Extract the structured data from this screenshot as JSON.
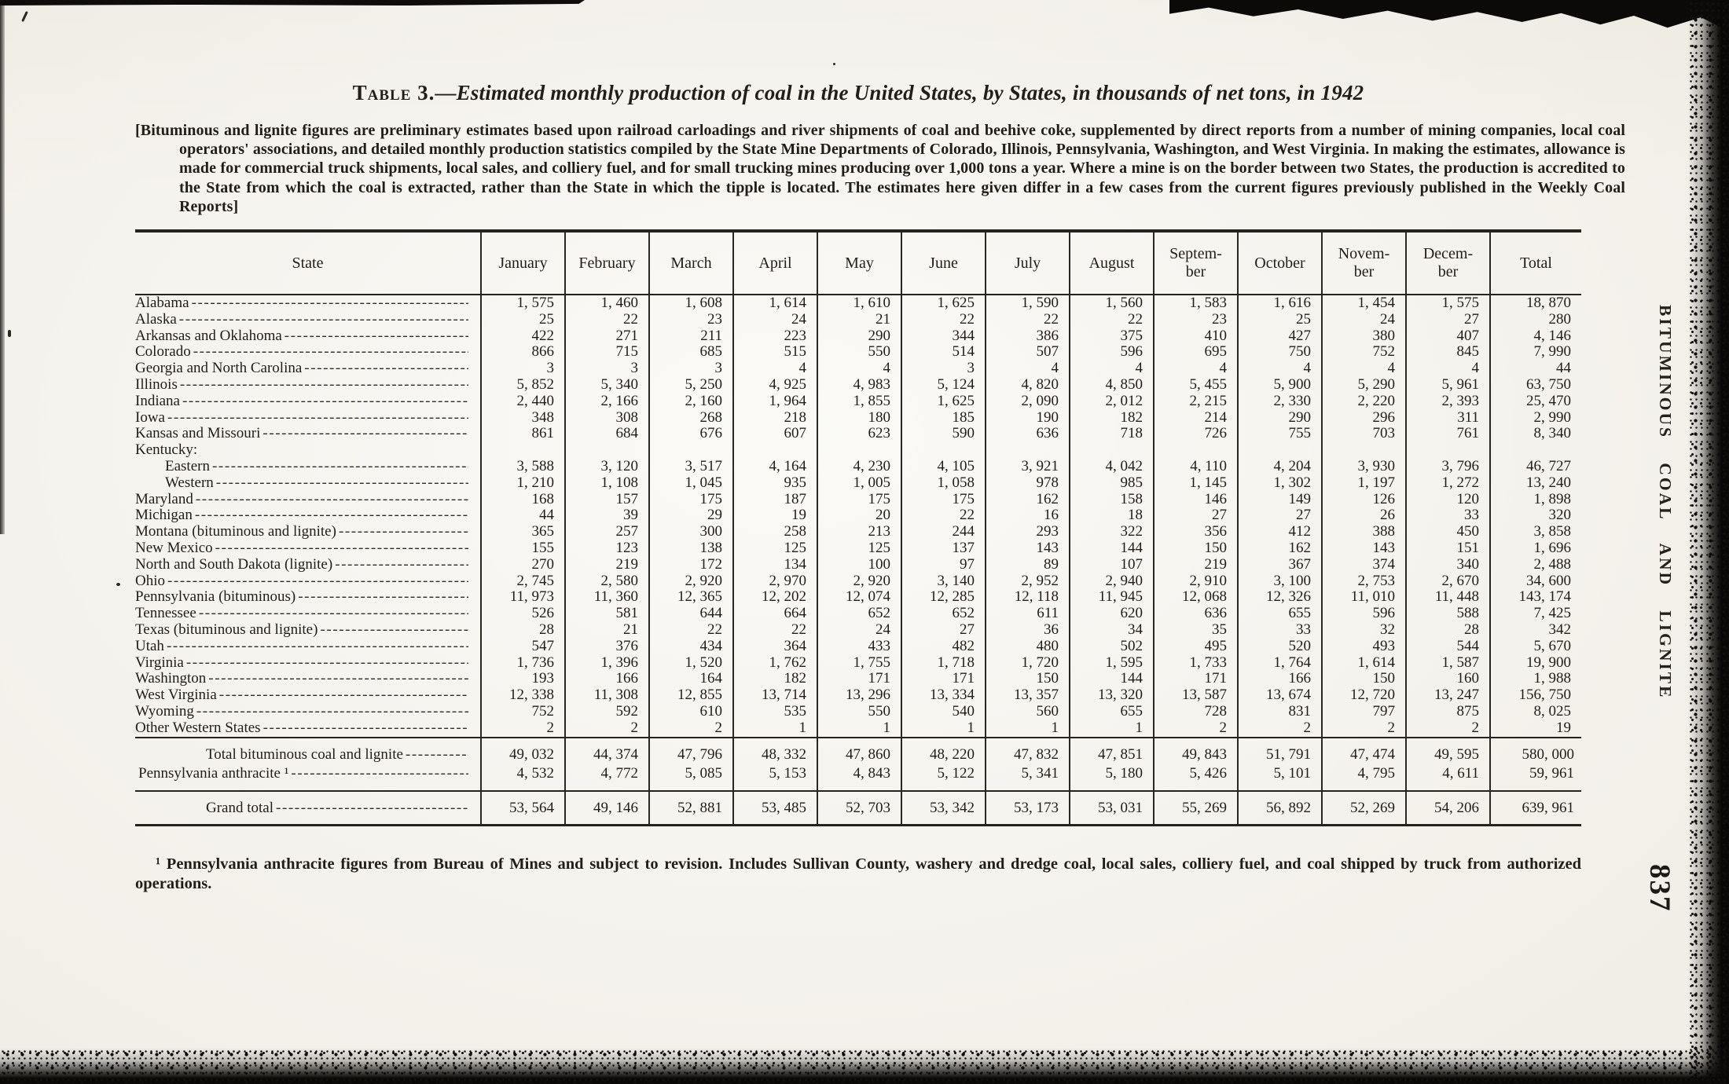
{
  "page": {
    "side_label": "BITUMINOUS COAL AND LIGNITE",
    "page_number": "837"
  },
  "title": {
    "label": "Table 3.",
    "dash": "—",
    "text": "Estimated monthly production of coal in the United States, by States, in thousands of net tons, in 1942"
  },
  "headnote": "[Bituminous and lignite figures are preliminary estimates based upon railroad carloadings and river shipments of coal and beehive coke, supplemented by direct reports from a number of mining companies, local coal operators' associations, and detailed monthly production statistics compiled by the State Mine Departments of Colorado, Illinois, Pennsylvania, Washington, and West Virginia. In making the estimates, allowance is made for commercial truck shipments, local sales, and colliery fuel, and for small trucking mines producing over 1,000 tons a year. Where a mine is on the border between two States, the production is accredited to the State from which the coal is extracted, rather than the State in which the tipple is located. The estimates here given differ in a few cases from the current figures previously published in the Weekly Coal Reports]",
  "table": {
    "state_header": "State",
    "columns": [
      "January",
      "February",
      "March",
      "April",
      "May",
      "June",
      "July",
      "August",
      "Septem-\nber",
      "October",
      "Novem-\nber",
      "Decem-\nber",
      "Total"
    ],
    "rows": [
      {
        "label": "Alabama",
        "indent": 0,
        "leader": true,
        "values": [
          "1, 575",
          "1, 460",
          "1, 608",
          "1, 614",
          "1, 610",
          "1, 625",
          "1, 590",
          "1, 560",
          "1, 583",
          "1, 616",
          "1, 454",
          "1, 575",
          "18, 870"
        ]
      },
      {
        "label": "Alaska",
        "indent": 0,
        "leader": true,
        "values": [
          "25",
          "22",
          "23",
          "24",
          "21",
          "22",
          "22",
          "22",
          "23",
          "25",
          "24",
          "27",
          "280"
        ]
      },
      {
        "label": "Arkansas and Oklahoma",
        "indent": 0,
        "leader": true,
        "values": [
          "422",
          "271",
          "211",
          "223",
          "290",
          "344",
          "386",
          "375",
          "410",
          "427",
          "380",
          "407",
          "4, 146"
        ]
      },
      {
        "label": "Colorado",
        "indent": 0,
        "leader": true,
        "values": [
          "866",
          "715",
          "685",
          "515",
          "550",
          "514",
          "507",
          "596",
          "695",
          "750",
          "752",
          "845",
          "7, 990"
        ]
      },
      {
        "label": "Georgia and North Carolina",
        "indent": 0,
        "leader": true,
        "values": [
          "3",
          "3",
          "3",
          "4",
          "4",
          "3",
          "4",
          "4",
          "4",
          "4",
          "4",
          "4",
          "44"
        ]
      },
      {
        "label": "Illinois",
        "indent": 0,
        "leader": true,
        "values": [
          "5, 852",
          "5, 340",
          "5, 250",
          "4, 925",
          "4, 983",
          "5, 124",
          "4, 820",
          "4, 850",
          "5, 455",
          "5, 900",
          "5, 290",
          "5, 961",
          "63, 750"
        ]
      },
      {
        "label": "Indiana",
        "indent": 0,
        "leader": true,
        "values": [
          "2, 440",
          "2, 166",
          "2, 160",
          "1, 964",
          "1, 855",
          "1, 625",
          "2, 090",
          "2, 012",
          "2, 215",
          "2, 330",
          "2, 220",
          "2, 393",
          "25, 470"
        ]
      },
      {
        "label": "Iowa",
        "indent": 0,
        "leader": true,
        "values": [
          "348",
          "308",
          "268",
          "218",
          "180",
          "185",
          "190",
          "182",
          "214",
          "290",
          "296",
          "311",
          "2, 990"
        ]
      },
      {
        "label": "Kansas and Missouri",
        "indent": 0,
        "leader": true,
        "values": [
          "861",
          "684",
          "676",
          "607",
          "623",
          "590",
          "636",
          "718",
          "726",
          "755",
          "703",
          "761",
          "8, 340"
        ]
      },
      {
        "label": "Kentucky:",
        "indent": 0,
        "leader": false,
        "values": []
      },
      {
        "label": "Eastern",
        "indent": 1,
        "leader": true,
        "values": [
          "3, 588",
          "3, 120",
          "3, 517",
          "4, 164",
          "4, 230",
          "4, 105",
          "3, 921",
          "4, 042",
          "4, 110",
          "4, 204",
          "3, 930",
          "3, 796",
          "46, 727"
        ]
      },
      {
        "label": "Western",
        "indent": 1,
        "leader": true,
        "values": [
          "1, 210",
          "1, 108",
          "1, 045",
          "935",
          "1, 005",
          "1, 058",
          "978",
          "985",
          "1, 145",
          "1, 302",
          "1, 197",
          "1, 272",
          "13, 240"
        ]
      },
      {
        "label": "Maryland",
        "indent": 0,
        "leader": true,
        "values": [
          "168",
          "157",
          "175",
          "187",
          "175",
          "175",
          "162",
          "158",
          "146",
          "149",
          "126",
          "120",
          "1, 898"
        ]
      },
      {
        "label": "Michigan",
        "indent": 0,
        "leader": true,
        "values": [
          "44",
          "39",
          "29",
          "19",
          "20",
          "22",
          "16",
          "18",
          "27",
          "27",
          "26",
          "33",
          "320"
        ]
      },
      {
        "label": "Montana (bituminous and lignite)",
        "indent": 0,
        "leader": true,
        "values": [
          "365",
          "257",
          "300",
          "258",
          "213",
          "244",
          "293",
          "322",
          "356",
          "412",
          "388",
          "450",
          "3, 858"
        ]
      },
      {
        "label": "New Mexico",
        "indent": 0,
        "leader": true,
        "values": [
          "155",
          "123",
          "138",
          "125",
          "125",
          "137",
          "143",
          "144",
          "150",
          "162",
          "143",
          "151",
          "1, 696"
        ]
      },
      {
        "label": "North and South Dakota (lignite)",
        "indent": 0,
        "leader": true,
        "values": [
          "270",
          "219",
          "172",
          "134",
          "100",
          "97",
          "89",
          "107",
          "219",
          "367",
          "374",
          "340",
          "2, 488"
        ]
      },
      {
        "label": "Ohio",
        "indent": 0,
        "leader": true,
        "values": [
          "2, 745",
          "2, 580",
          "2, 920",
          "2, 970",
          "2, 920",
          "3, 140",
          "2, 952",
          "2, 940",
          "2, 910",
          "3, 100",
          "2, 753",
          "2, 670",
          "34, 600"
        ]
      },
      {
        "label": "Pennsylvania (bituminous)",
        "indent": 0,
        "leader": true,
        "values": [
          "11, 973",
          "11, 360",
          "12, 365",
          "12, 202",
          "12, 074",
          "12, 285",
          "12, 118",
          "11, 945",
          "12, 068",
          "12, 326",
          "11, 010",
          "11, 448",
          "143, 174"
        ]
      },
      {
        "label": "Tennessee",
        "indent": 0,
        "leader": true,
        "values": [
          "526",
          "581",
          "644",
          "664",
          "652",
          "652",
          "611",
          "620",
          "636",
          "655",
          "596",
          "588",
          "7, 425"
        ]
      },
      {
        "label": "Texas (bituminous and lignite)",
        "indent": 0,
        "leader": true,
        "values": [
          "28",
          "21",
          "22",
          "22",
          "24",
          "27",
          "36",
          "34",
          "35",
          "33",
          "32",
          "28",
          "342"
        ]
      },
      {
        "label": "Utah",
        "indent": 0,
        "leader": true,
        "values": [
          "547",
          "376",
          "434",
          "364",
          "433",
          "482",
          "480",
          "502",
          "495",
          "520",
          "493",
          "544",
          "5, 670"
        ]
      },
      {
        "label": "Virginia",
        "indent": 0,
        "leader": true,
        "values": [
          "1, 736",
          "1, 396",
          "1, 520",
          "1, 762",
          "1, 755",
          "1, 718",
          "1, 720",
          "1, 595",
          "1, 733",
          "1, 764",
          "1, 614",
          "1, 587",
          "19, 900"
        ]
      },
      {
        "label": "Washington",
        "indent": 0,
        "leader": true,
        "values": [
          "193",
          "166",
          "164",
          "182",
          "171",
          "171",
          "150",
          "144",
          "171",
          "166",
          "150",
          "160",
          "1, 988"
        ]
      },
      {
        "label": "West Virginia",
        "indent": 0,
        "leader": true,
        "values": [
          "12, 338",
          "11, 308",
          "12, 855",
          "13, 714",
          "13, 296",
          "13, 334",
          "13, 357",
          "13, 320",
          "13, 587",
          "13, 674",
          "12, 720",
          "13, 247",
          "156, 750"
        ]
      },
      {
        "label": "Wyoming",
        "indent": 0,
        "leader": true,
        "values": [
          "752",
          "592",
          "610",
          "535",
          "550",
          "540",
          "560",
          "655",
          "728",
          "831",
          "797",
          "875",
          "8, 025"
        ]
      },
      {
        "label": "Other Western States",
        "indent": 0,
        "leader": true,
        "values": [
          "2",
          "2",
          "2",
          "1",
          "1",
          "1",
          "1",
          "1",
          "2",
          "2",
          "2",
          "2",
          "19"
        ]
      }
    ],
    "totals": [
      {
        "label": "Total bituminous coal and lignite",
        "indent": 2,
        "leader": true,
        "values": [
          "49, 032",
          "44, 374",
          "47, 796",
          "48, 332",
          "47, 860",
          "48, 220",
          "47, 832",
          "47, 851",
          "49, 843",
          "51, 791",
          "47, 474",
          "49, 595",
          "580, 000"
        ]
      },
      {
        "label": "Pennsylvania anthracite ¹",
        "indent": 0,
        "leader": true,
        "values": [
          "4, 532",
          "4, 772",
          "5, 085",
          "5, 153",
          "4, 843",
          "5, 122",
          "5, 341",
          "5, 180",
          "5, 426",
          "5, 101",
          "4, 795",
          "4, 611",
          "59, 961"
        ]
      }
    ],
    "grand_total": {
      "label": "Grand total",
      "indent": 2,
      "leader": true,
      "values": [
        "53, 564",
        "49, 146",
        "52, 881",
        "53, 485",
        "52, 703",
        "53, 342",
        "53, 173",
        "53, 031",
        "55, 269",
        "56, 892",
        "52, 269",
        "54, 206",
        "639, 961"
      ]
    }
  },
  "footnote": "¹ Pennsylvania anthracite figures from Bureau of Mines and subject to revision.  Includes Sullivan County, washery and dredge coal, local sales, colliery fuel, and coal shipped by truck from authorized operations.",
  "colors": {
    "ink": "#211e18",
    "paper": "#f6f4ee"
  }
}
